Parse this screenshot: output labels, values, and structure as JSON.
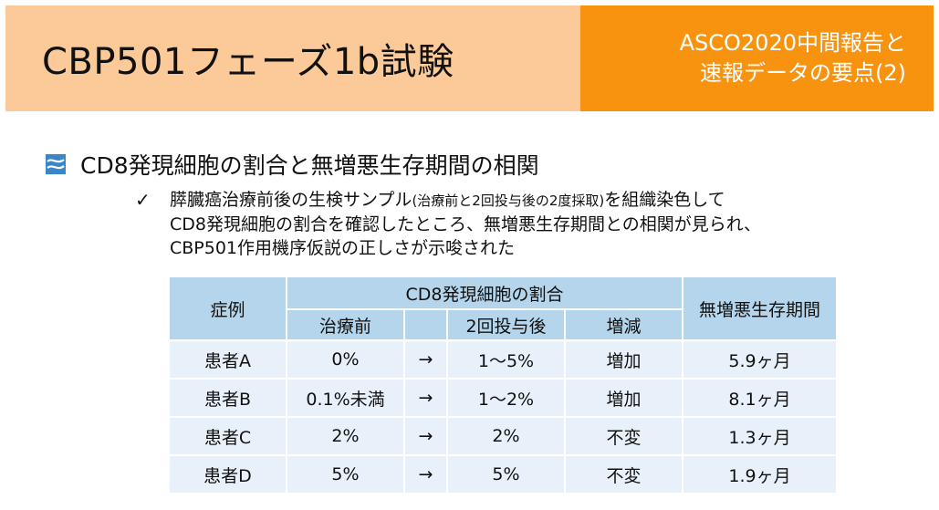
{
  "header": {
    "title": "CBP501フェーズ1b試験",
    "subtitle_line1": "ASCO2020中間報告と",
    "subtitle_line2": "速報データの要点(2)"
  },
  "section": {
    "title": "CD8発現細胞の割合と無増悪生存期間の相関",
    "bullet": {
      "line1_a": "膵臓癌治療前後の生検サンプル",
      "line1_small": "(治療前と2回投与後の2度採取)",
      "line1_b": "を組織染色して",
      "line2": "CD8発現細胞の割合を確認したところ、無増悪生存期間との相関が見られ、",
      "line3": "CBP501作用機序仮説の正しさが示唆された"
    }
  },
  "table": {
    "col_case": "症例",
    "col_cd8": "CD8発現細胞の割合",
    "col_pfs": "無増悪生存期間",
    "sub_before": "治療前",
    "sub_after": "2回投与後",
    "sub_change": "増減",
    "rows": [
      {
        "case": "患者A",
        "before": "0%",
        "arrow": "→",
        "after": "1〜5%",
        "change": "増加",
        "pfs": "5.9ヶ月"
      },
      {
        "case": "患者B",
        "before": "0.1%未満",
        "arrow": "→",
        "after": "1〜2%",
        "change": "増加",
        "pfs": "8.1ヶ月"
      },
      {
        "case": "患者C",
        "before": "2%",
        "arrow": "→",
        "after": "2%",
        "change": "不変",
        "pfs": "1.3ヶ月"
      },
      {
        "case": "患者D",
        "before": "5%",
        "arrow": "→",
        "after": "5%",
        "change": "不変",
        "pfs": "1.9ヶ月"
      }
    ]
  },
  "colors": {
    "header_left": "#fbca98",
    "header_right": "#f7930f",
    "table_header": "#b5d5ec",
    "table_row": "#e8f1f9"
  },
  "icons": {
    "section_bullet": "blue-swirl-icon",
    "item_bullet": "checkmark-icon"
  }
}
